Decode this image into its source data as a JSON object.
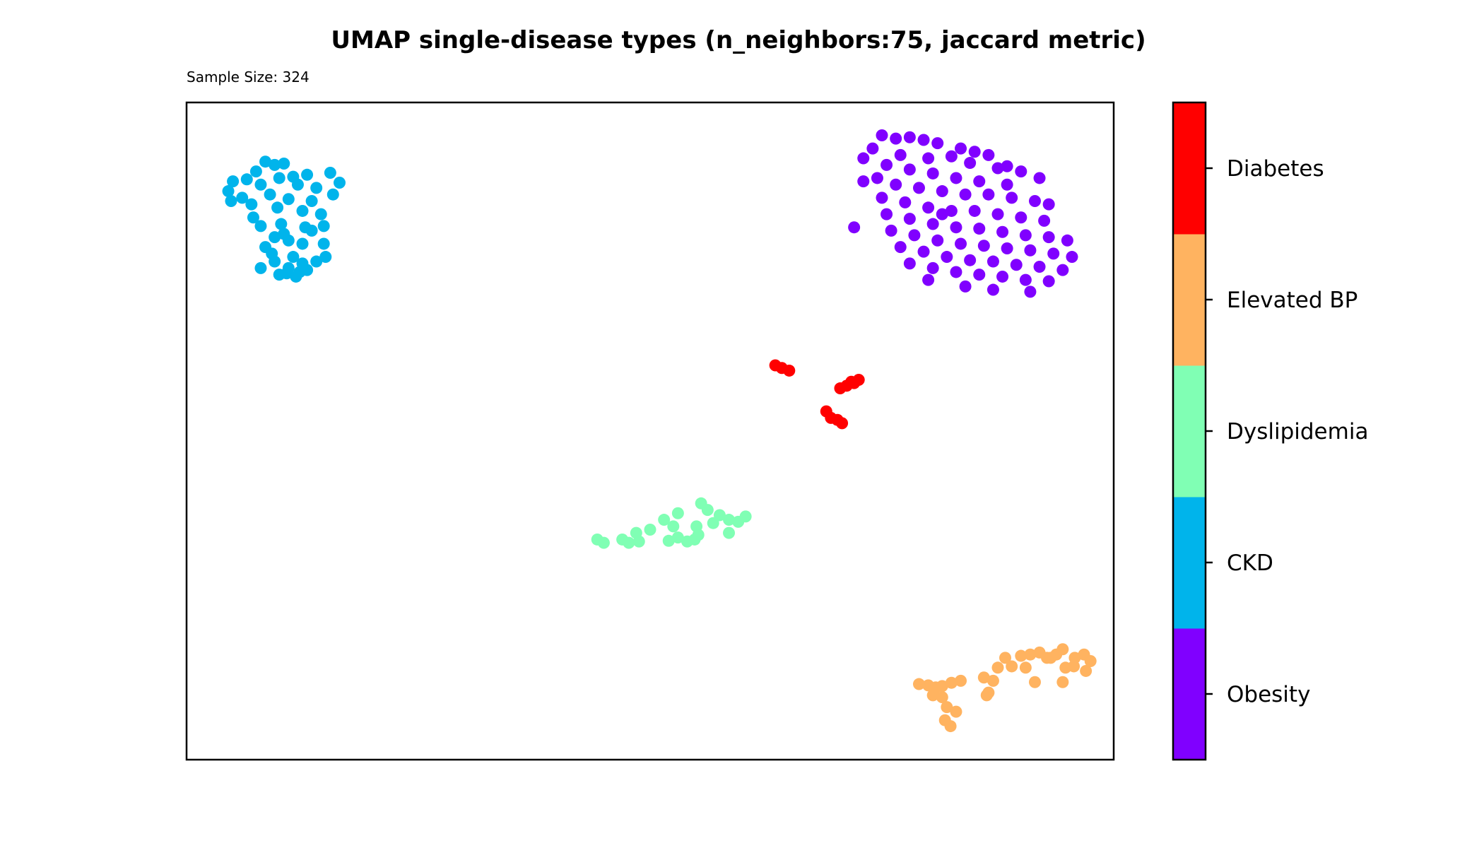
{
  "chart_data": {
    "type": "scatter",
    "title": "UMAP single-disease types (n_neighbors:75, jaccard metric)",
    "subtitle": "Sample Size: 324",
    "xlabel": "",
    "ylabel": "",
    "xlim": [
      0,
      100
    ],
    "ylim": [
      0,
      100
    ],
    "grid": false,
    "axes_ticks": false,
    "legend": "colorbar-right",
    "colorbar": [
      {
        "label": "Obesity",
        "color": "#8000ff"
      },
      {
        "label": "CKD",
        "color": "#00b4eb"
      },
      {
        "label": "Dyslipidemia",
        "color": "#80ffb4"
      },
      {
        "label": "Elevated BP",
        "color": "#ffb360"
      },
      {
        "label": "Diabetes",
        "color": "#ff0000"
      }
    ],
    "series": [
      {
        "name": "Obesity",
        "color": "#8000ff",
        "points": [
          [
            75,
            95
          ],
          [
            76.5,
            94.5
          ],
          [
            78,
            94.7
          ],
          [
            79.5,
            94.3
          ],
          [
            81,
            93.8
          ],
          [
            83.5,
            93
          ],
          [
            85,
            92.5
          ],
          [
            74,
            93
          ],
          [
            77,
            92
          ],
          [
            80,
            91.5
          ],
          [
            82.5,
            91.8
          ],
          [
            84.5,
            90.8
          ],
          [
            87.5,
            90
          ],
          [
            90,
            89.5
          ],
          [
            92,
            88.5
          ],
          [
            73,
            91.5
          ],
          [
            75.5,
            90.5
          ],
          [
            78,
            89.8
          ],
          [
            80.5,
            89.2
          ],
          [
            83,
            88.5
          ],
          [
            85.5,
            88
          ],
          [
            88.5,
            87.5
          ],
          [
            74.5,
            88.5
          ],
          [
            76.5,
            87.5
          ],
          [
            79,
            87
          ],
          [
            81.5,
            86.5
          ],
          [
            84,
            86
          ],
          [
            86.5,
            86
          ],
          [
            89,
            85.5
          ],
          [
            91.5,
            85
          ],
          [
            93,
            84.5
          ],
          [
            75,
            85.5
          ],
          [
            77.5,
            84.8
          ],
          [
            80,
            84
          ],
          [
            82.5,
            83.5
          ],
          [
            85,
            83.5
          ],
          [
            87.5,
            83
          ],
          [
            90,
            82.5
          ],
          [
            92.5,
            82
          ],
          [
            75.5,
            83
          ],
          [
            78,
            82.3
          ],
          [
            80.5,
            81.5
          ],
          [
            83,
            81
          ],
          [
            85.5,
            80.8
          ],
          [
            88,
            80.3
          ],
          [
            90.5,
            79.8
          ],
          [
            93,
            79.5
          ],
          [
            95,
            79
          ],
          [
            76,
            80.5
          ],
          [
            78.5,
            79.8
          ],
          [
            81,
            79
          ],
          [
            83.5,
            78.5
          ],
          [
            86,
            78.2
          ],
          [
            88.5,
            77.8
          ],
          [
            91,
            77.5
          ],
          [
            93.5,
            77
          ],
          [
            95.5,
            76.5
          ],
          [
            77,
            78
          ],
          [
            79.5,
            77.3
          ],
          [
            82,
            76.5
          ],
          [
            84.5,
            76
          ],
          [
            87,
            75.8
          ],
          [
            89.5,
            75.3
          ],
          [
            92,
            75
          ],
          [
            94.5,
            74.5
          ],
          [
            78,
            75.5
          ],
          [
            80.5,
            74.8
          ],
          [
            83,
            74.2
          ],
          [
            85.5,
            73.8
          ],
          [
            88,
            73.5
          ],
          [
            90.5,
            73
          ],
          [
            93,
            72.8
          ],
          [
            80,
            73
          ],
          [
            84,
            72
          ],
          [
            87,
            71.5
          ],
          [
            91,
            71.2
          ],
          [
            73,
            88
          ],
          [
            72,
            81
          ],
          [
            86.5,
            92
          ],
          [
            88.5,
            90.3
          ],
          [
            81.5,
            83
          ]
        ]
      },
      {
        "name": "CKD",
        "color": "#00b4eb",
        "points": [
          [
            8.5,
            91
          ],
          [
            9.5,
            90.5
          ],
          [
            10.5,
            90.7
          ],
          [
            7.5,
            89.5
          ],
          [
            10,
            88.5
          ],
          [
            11.5,
            88.7
          ],
          [
            13,
            89
          ],
          [
            15.5,
            89.3
          ],
          [
            5,
            88
          ],
          [
            6.5,
            88.3
          ],
          [
            8,
            87.5
          ],
          [
            12,
            87.5
          ],
          [
            14,
            87
          ],
          [
            16.5,
            87.8
          ],
          [
            4.5,
            86.5
          ],
          [
            6,
            85.5
          ],
          [
            9,
            86
          ],
          [
            11,
            85.3
          ],
          [
            13.5,
            85
          ],
          [
            15.8,
            86
          ],
          [
            4.8,
            85
          ],
          [
            7,
            84.5
          ],
          [
            9.8,
            84
          ],
          [
            12.5,
            83.5
          ],
          [
            14.5,
            83
          ],
          [
            7.2,
            82.5
          ],
          [
            10.2,
            81.5
          ],
          [
            12.8,
            81
          ],
          [
            8,
            81.2
          ],
          [
            10.5,
            80
          ],
          [
            13.5,
            80.5
          ],
          [
            14.8,
            81.2
          ],
          [
            9.5,
            79.5
          ],
          [
            11,
            79
          ],
          [
            12.5,
            78.5
          ],
          [
            14.8,
            78.5
          ],
          [
            8.5,
            78
          ],
          [
            11.5,
            76.5
          ],
          [
            12.5,
            75.5
          ],
          [
            9.5,
            75.8
          ],
          [
            11,
            74.8
          ],
          [
            13,
            74.5
          ],
          [
            8,
            74.8
          ],
          [
            10,
            73.8
          ],
          [
            11.8,
            73.5
          ],
          [
            14,
            75.8
          ],
          [
            15,
            76.5
          ],
          [
            10.8,
            74
          ],
          [
            12.2,
            74.2
          ],
          [
            9.2,
            77
          ]
        ]
      },
      {
        "name": "Dyslipidemia",
        "color": "#80ffb4",
        "points": [
          [
            55.5,
            39
          ],
          [
            56.2,
            38
          ],
          [
            57.5,
            37.2
          ],
          [
            58.5,
            36.5
          ],
          [
            59.5,
            36.2
          ],
          [
            60.3,
            37
          ],
          [
            56.8,
            36
          ],
          [
            53,
            37.5
          ],
          [
            51.5,
            36.5
          ],
          [
            52.5,
            35.5
          ],
          [
            55,
            35.5
          ],
          [
            50,
            35
          ],
          [
            48.5,
            34.5
          ],
          [
            47,
            33.5
          ],
          [
            47.7,
            33
          ],
          [
            44.3,
            33.5
          ],
          [
            45,
            33
          ],
          [
            53,
            33.8
          ],
          [
            54,
            33.2
          ],
          [
            54.8,
            33.5
          ],
          [
            55.2,
            34.2
          ],
          [
            58.5,
            34.5
          ],
          [
            52,
            33.3
          ],
          [
            48.8,
            33.2
          ]
        ]
      },
      {
        "name": "Diabetes",
        "color": "#ff0000",
        "points": [
          [
            63.5,
            60
          ],
          [
            64.2,
            59.6
          ],
          [
            65,
            59.2
          ],
          [
            70.5,
            56.5
          ],
          [
            71.2,
            56.9
          ],
          [
            72,
            57.3
          ],
          [
            72.5,
            57.8
          ],
          [
            71.7,
            57.5
          ],
          [
            69,
            53
          ],
          [
            69.5,
            52
          ],
          [
            70.2,
            51.7
          ],
          [
            70.7,
            51.2
          ]
        ]
      },
      {
        "name": "Elevated BP",
        "color": "#ffb360",
        "points": [
          [
            79,
            11.5
          ],
          [
            80,
            11.3
          ],
          [
            80.8,
            11
          ],
          [
            81.5,
            11.2
          ],
          [
            82.5,
            11.7
          ],
          [
            83.5,
            12
          ],
          [
            80.5,
            9.8
          ],
          [
            81.5,
            9.5
          ],
          [
            82,
            8
          ],
          [
            83,
            7.3
          ],
          [
            81.8,
            6
          ],
          [
            82.4,
            5.1
          ],
          [
            86,
            12.5
          ],
          [
            87,
            12
          ],
          [
            87.5,
            14
          ],
          [
            88.3,
            15.5
          ],
          [
            89,
            14.2
          ],
          [
            90,
            15.8
          ],
          [
            91,
            16
          ],
          [
            92,
            16.3
          ],
          [
            92.8,
            15.5
          ],
          [
            93.8,
            16
          ],
          [
            94.5,
            16.8
          ],
          [
            95.8,
            15.5
          ],
          [
            96.8,
            16
          ],
          [
            97.5,
            15
          ],
          [
            94.8,
            14
          ],
          [
            97,
            13.5
          ],
          [
            90.5,
            14
          ],
          [
            86.5,
            10.2
          ],
          [
            86.3,
            9.8
          ],
          [
            94.5,
            11.8
          ],
          [
            91.5,
            11.8
          ],
          [
            93.2,
            15.5
          ],
          [
            95.7,
            14.2
          ]
        ]
      }
    ]
  }
}
